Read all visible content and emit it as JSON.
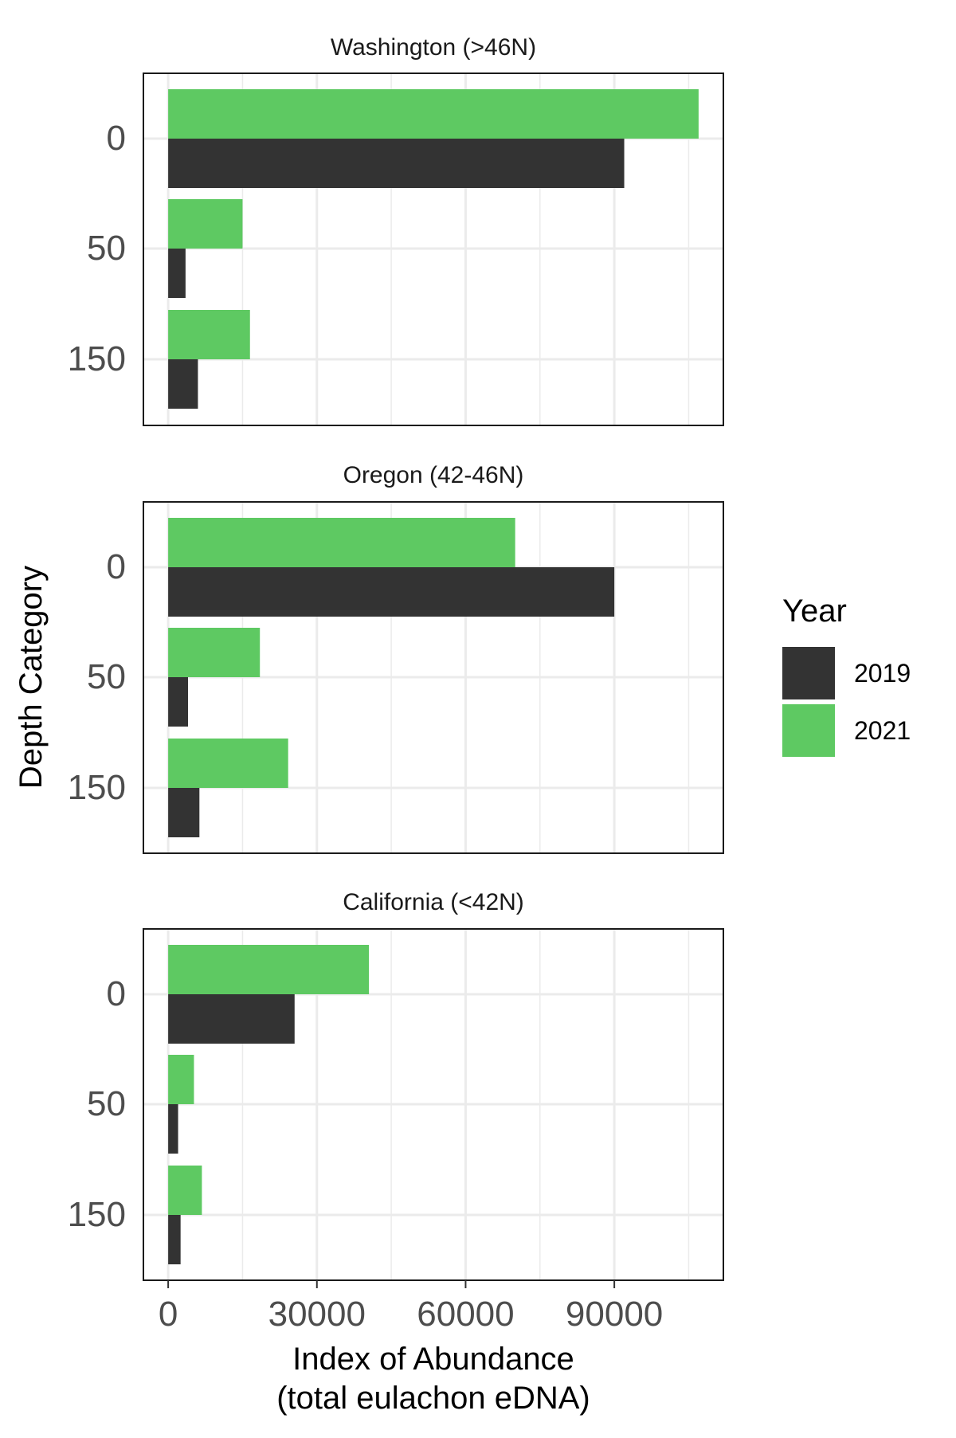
{
  "chart_data": {
    "type": "bar",
    "orientation": "horizontal",
    "facets": [
      {
        "title": "Washington (>46N)",
        "categories": [
          "0",
          "50",
          "150"
        ],
        "series": [
          {
            "name": "2019",
            "values": [
              92000,
              3500,
              6000
            ]
          },
          {
            "name": "2021",
            "values": [
              107000,
              15000,
              16500
            ]
          }
        ]
      },
      {
        "title": "Oregon (42-46N)",
        "categories": [
          "0",
          "50",
          "150"
        ],
        "series": [
          {
            "name": "2019",
            "values": [
              90000,
              4000,
              6300
            ]
          },
          {
            "name": "2021",
            "values": [
              70000,
              18500,
              24200
            ]
          }
        ]
      },
      {
        "title": "California (<42N)",
        "categories": [
          "0",
          "50",
          "150"
        ],
        "series": [
          {
            "name": "2019",
            "values": [
              25500,
              2000,
              2500
            ]
          },
          {
            "name": "2021",
            "values": [
              40500,
              5200,
              6800
            ]
          }
        ]
      }
    ],
    "xlabel": [
      "Index of Abundance",
      "(total eulachon eDNA)"
    ],
    "ylabel": "Depth Category",
    "xticks": [
      0,
      30000,
      60000,
      90000
    ],
    "xtick_labels": [
      "0",
      "30000",
      "60000",
      "90000"
    ],
    "xlim": [
      -5000,
      112000
    ],
    "legend": {
      "title": "Year",
      "position": "right",
      "entries": [
        {
          "label": "2019",
          "color": "#333333"
        },
        {
          "label": "2021",
          "color": "#5EC962"
        }
      ]
    },
    "grid": true
  }
}
